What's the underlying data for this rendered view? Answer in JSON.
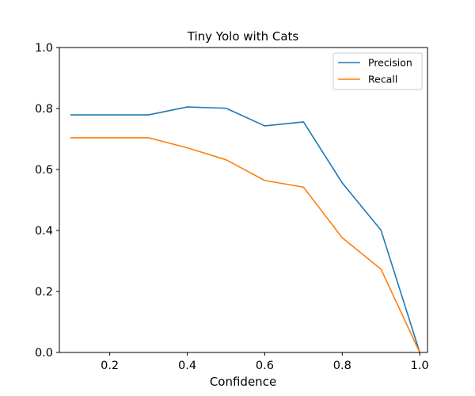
{
  "chart_data": {
    "type": "line",
    "title": "Tiny Yolo with Cats",
    "xlabel": "Confidence",
    "ylabel": "",
    "xlim": [
      0.07,
      1.02
    ],
    "ylim": [
      0.0,
      1.0
    ],
    "xticks": [
      0.2,
      0.4,
      0.6,
      0.8,
      1.0
    ],
    "xtick_labels": [
      "0.2",
      "0.4",
      "0.6",
      "0.8",
      "1.0"
    ],
    "yticks": [
      0.0,
      0.2,
      0.4,
      0.6,
      0.8,
      1.0
    ],
    "ytick_labels": [
      "0.0",
      "0.2",
      "0.4",
      "0.6",
      "0.8",
      "1.0"
    ],
    "grid": false,
    "legend_position": "top-right",
    "x": [
      0.1,
      0.2,
      0.3,
      0.4,
      0.5,
      0.6,
      0.7,
      0.8,
      0.9,
      1.0
    ],
    "series": [
      {
        "name": "Precision",
        "color": "#1f77b4",
        "values": [
          0.779,
          0.779,
          0.779,
          0.805,
          0.801,
          0.743,
          0.756,
          0.556,
          0.401,
          0.0
        ]
      },
      {
        "name": "Recall",
        "color": "#ff7f0e",
        "values": [
          0.704,
          0.704,
          0.704,
          0.671,
          0.632,
          0.564,
          0.542,
          0.376,
          0.273,
          0.0
        ]
      }
    ]
  }
}
